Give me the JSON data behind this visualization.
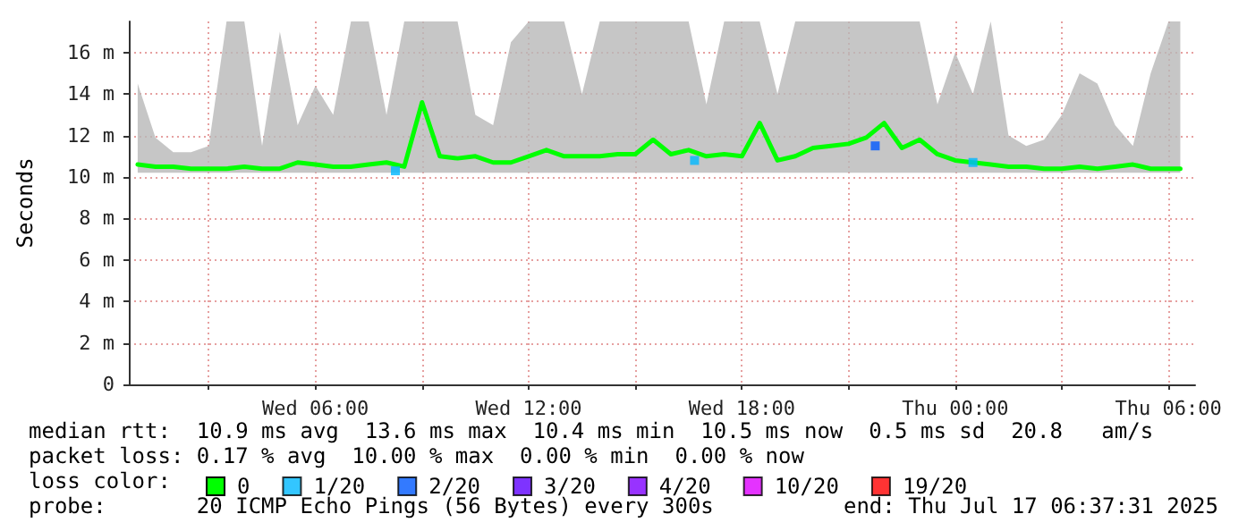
{
  "chart_data": {
    "type": "line",
    "ylabel": "Seconds",
    "x": [
      "2025-07-16T01:00",
      "2025-07-16T01:30",
      "2025-07-16T02:00",
      "2025-07-16T02:30",
      "2025-07-16T03:00",
      "2025-07-16T03:30",
      "2025-07-16T04:00",
      "2025-07-16T04:30",
      "2025-07-16T05:00",
      "2025-07-16T05:30",
      "2025-07-16T06:00",
      "2025-07-16T06:30",
      "2025-07-16T07:00",
      "2025-07-16T07:30",
      "2025-07-16T08:00",
      "2025-07-16T08:30",
      "2025-07-16T09:00",
      "2025-07-16T09:30",
      "2025-07-16T10:00",
      "2025-07-16T10:30",
      "2025-07-16T11:00",
      "2025-07-16T11:30",
      "2025-07-16T12:00",
      "2025-07-16T12:30",
      "2025-07-16T13:00",
      "2025-07-16T13:30",
      "2025-07-16T14:00",
      "2025-07-16T14:30",
      "2025-07-16T15:00",
      "2025-07-16T15:30",
      "2025-07-16T16:00",
      "2025-07-16T16:30",
      "2025-07-16T17:00",
      "2025-07-16T17:30",
      "2025-07-16T18:00",
      "2025-07-16T18:30",
      "2025-07-16T19:00",
      "2025-07-16T19:30",
      "2025-07-16T20:00",
      "2025-07-16T20:30",
      "2025-07-16T21:00",
      "2025-07-16T21:30",
      "2025-07-16T22:00",
      "2025-07-16T22:30",
      "2025-07-16T23:00",
      "2025-07-16T23:30",
      "2025-07-17T00:00",
      "2025-07-17T00:30",
      "2025-07-17T01:00",
      "2025-07-17T01:30",
      "2025-07-17T02:00",
      "2025-07-17T02:30",
      "2025-07-17T03:00",
      "2025-07-17T03:30",
      "2025-07-17T04:00",
      "2025-07-17T04:30",
      "2025-07-17T05:00",
      "2025-07-17T05:30",
      "2025-07-17T06:00",
      "2025-07-17T06:20"
    ],
    "series": [
      {
        "name": "0",
        "color": "#00ff00",
        "values": [
          10.6,
          10.5,
          10.5,
          10.4,
          10.4,
          10.4,
          10.5,
          10.4,
          10.4,
          10.7,
          10.6,
          10.5,
          10.5,
          10.6,
          10.7,
          10.5,
          13.6,
          11.0,
          10.9,
          11.0,
          10.7,
          10.7,
          11.0,
          11.3,
          11.0,
          11.0,
          11.0,
          11.1,
          11.1,
          11.8,
          11.1,
          11.3,
          11.0,
          11.1,
          11.0,
          12.6,
          10.8,
          11.0,
          11.4,
          11.5,
          11.6,
          11.9,
          12.6,
          11.4,
          11.8,
          11.1,
          10.8,
          10.7,
          10.6,
          10.5,
          10.5,
          10.4,
          10.4,
          10.5,
          10.4,
          10.5,
          10.6,
          10.4,
          10.4,
          10.4
        ],
        "lower": [
          10.2,
          10.2,
          10.2,
          10.2,
          10.2,
          10.2,
          10.2,
          10.2,
          10.2,
          10.2,
          10.2,
          10.2,
          10.2,
          10.2,
          10.2,
          10.2,
          10.2,
          10.2,
          10.2,
          10.2,
          10.2,
          10.2,
          10.2,
          10.2,
          10.2,
          10.2,
          10.2,
          10.2,
          10.2,
          10.2,
          10.2,
          10.2,
          10.2,
          10.2,
          10.2,
          10.2,
          10.2,
          10.2,
          10.2,
          10.2,
          10.2,
          10.2,
          10.2,
          10.2,
          10.2,
          10.2,
          10.2,
          10.2,
          10.2,
          10.2,
          10.2,
          10.2,
          10.2,
          10.2,
          10.2,
          10.2,
          10.2,
          10.2,
          10.2,
          10.2
        ],
        "upper": [
          14.5,
          11.9,
          11.2,
          11.2,
          11.5,
          17.5,
          17.5,
          11.5,
          17.0,
          12.5,
          14.4,
          13.0,
          17.5,
          17.5,
          13.0,
          17.5,
          17.5,
          17.5,
          17.5,
          13.0,
          12.5,
          16.5,
          17.5,
          17.5,
          17.5,
          14.0,
          17.5,
          17.5,
          17.5,
          17.5,
          17.5,
          17.5,
          13.5,
          17.5,
          17.5,
          17.5,
          14.0,
          17.5,
          17.5,
          17.5,
          17.5,
          17.5,
          17.5,
          17.5,
          17.5,
          13.5,
          16.0,
          14.0,
          17.5,
          12.0,
          11.5,
          11.8,
          13.0,
          15.0,
          14.5,
          12.5,
          11.5,
          15.0,
          17.5,
          17.5
        ]
      },
      {
        "name": "1/20",
        "color": "#00b8ff",
        "type": "scatter",
        "marker": "square",
        "x": [
          "2025-07-16T08:15",
          "2025-07-16T16:40",
          "2025-07-17T00:30"
        ],
        "values": [
          10.3,
          10.8,
          10.7
        ]
      },
      {
        "name": "2/20",
        "color": "#0059ff",
        "type": "scatter",
        "marker": "square",
        "x": [
          "2025-07-16T21:45"
        ],
        "values": [
          11.5
        ]
      },
      {
        "name": "3/20",
        "color": "#5e00ff",
        "type": "scatter",
        "marker": "square",
        "values": [
          null,
          null,
          null,
          null,
          null,
          null,
          null,
          null,
          null,
          null,
          null,
          null,
          null,
          null,
          null,
          null,
          null,
          null,
          null,
          null,
          null,
          null,
          null,
          null,
          null,
          null,
          null,
          null,
          null,
          null,
          null,
          null,
          null,
          null,
          null,
          null,
          null,
          null,
          null,
          null,
          null,
          null,
          null,
          null,
          null,
          null,
          null,
          null,
          null,
          null,
          null,
          null,
          null,
          null,
          null,
          null,
          null,
          null,
          null,
          null
        ]
      },
      {
        "name": "4/20",
        "color": "#7e00ff",
        "type": "scatter",
        "marker": "square",
        "values": [
          null,
          null,
          null,
          null,
          null,
          null,
          null,
          null,
          null,
          null,
          null,
          null,
          null,
          null,
          null,
          null,
          null,
          null,
          null,
          null,
          null,
          null,
          null,
          null,
          null,
          null,
          null,
          null,
          null,
          null,
          null,
          null,
          null,
          null,
          null,
          null,
          null,
          null,
          null,
          null,
          null,
          null,
          null,
          null,
          null,
          null,
          null,
          null,
          null,
          null,
          null,
          null,
          null,
          null,
          null,
          null,
          null,
          null,
          null,
          null
        ]
      },
      {
        "name": "10/20",
        "color": "#dd00ff",
        "type": "scatter",
        "marker": "square",
        "values": [
          null,
          null,
          null,
          null,
          null,
          null,
          null,
          null,
          null,
          null,
          null,
          null,
          null,
          null,
          null,
          null,
          null,
          null,
          null,
          null,
          null,
          null,
          null,
          null,
          null,
          null,
          null,
          null,
          null,
          null,
          null,
          null,
          null,
          null,
          null,
          null,
          null,
          null,
          null,
          null,
          null,
          null,
          null,
          null,
          null,
          null,
          null,
          null,
          null,
          null,
          null,
          null,
          null,
          null,
          null,
          null,
          null,
          null,
          null,
          null
        ]
      },
      {
        "name": "19/20",
        "color": "#ff0000",
        "type": "scatter",
        "marker": "square",
        "values": [
          null,
          null,
          null,
          null,
          null,
          null,
          null,
          null,
          null,
          null,
          null,
          null,
          null,
          null,
          null,
          null,
          null,
          null,
          null,
          null,
          null,
          null,
          null,
          null,
          null,
          null,
          null,
          null,
          null,
          null,
          null,
          null,
          null,
          null,
          null,
          null,
          null,
          null,
          null,
          null,
          null,
          null,
          null,
          null,
          null,
          null,
          null,
          null,
          null,
          null,
          null,
          null,
          null,
          null,
          null,
          null,
          null,
          null,
          null,
          null
        ]
      }
    ],
    "xlim": [
      "2025-07-16T00:45",
      "2025-07-17T06:45"
    ],
    "xticks": [
      {
        "value": "2025-07-16T03:00",
        "label": null
      },
      {
        "value": "2025-07-16T06:00",
        "label": "Wed 06:00"
      },
      {
        "value": "2025-07-16T09:00",
        "label": null
      },
      {
        "value": "2025-07-16T12:00",
        "label": "Wed 12:00"
      },
      {
        "value": "2025-07-16T15:00",
        "label": null
      },
      {
        "value": "2025-07-16T18:00",
        "label": "Wed 18:00"
      },
      {
        "value": "2025-07-16T21:00",
        "label": null
      },
      {
        "value": "2025-07-17T00:00",
        "label": "Thu 00:00"
      },
      {
        "value": "2025-07-17T03:00",
        "label": null
      },
      {
        "value": "2025-07-17T06:00",
        "label": "Thu 06:00"
      }
    ],
    "ylim": [
      0,
      17.5
    ],
    "yticks": [
      0,
      {
        "value": 2,
        "label": "2 m"
      },
      {
        "value": 4,
        "label": "4 m"
      },
      {
        "value": 6,
        "label": "6 m"
      },
      {
        "value": 8,
        "label": "8 m"
      },
      {
        "value": 10,
        "label": "10 m"
      },
      {
        "value": 12,
        "label": "12 m"
      },
      {
        "value": 14,
        "label": "14 m"
      },
      {
        "value": 16,
        "label": "16 m"
      }
    ],
    "grid": true,
    "legend": "bottom",
    "legend_title": "loss color:",
    "annotations": [
      "median rtt:  10.9 ms avg  13.6 ms max  10.4 ms min  10.5 ms now  0.5 ms sd  20.8   am/s",
      "packet loss: 0.17 % avg  10.00 % max  0.00 % min  0.00 % now",
      "probe:       20 ICMP Echo Pings (56 Bytes) every 300s",
      "end: Thu Jul 17 06:37:31 2025"
    ]
  }
}
